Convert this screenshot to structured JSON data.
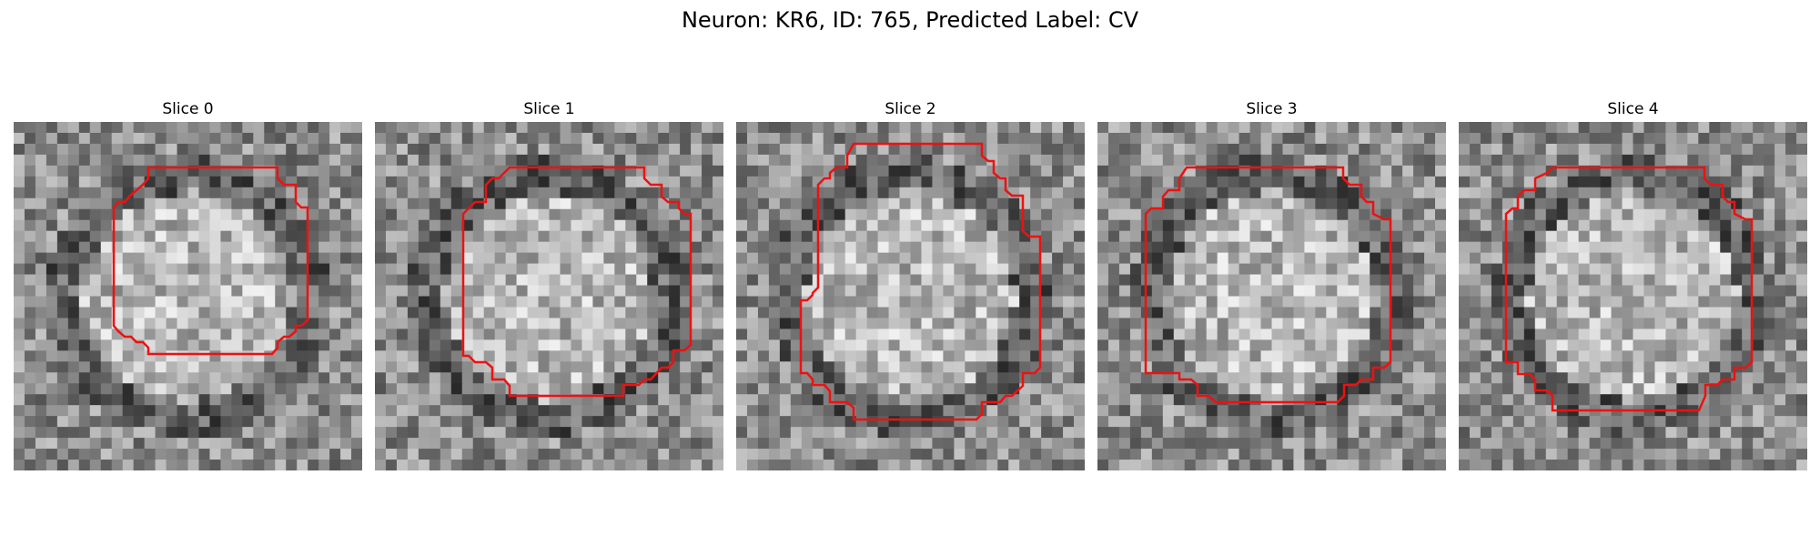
{
  "title": "Neuron: KR6, ID: 765, Predicted Label: CV",
  "colors": {
    "background": "#ffffff",
    "contour": "#ee1111",
    "colormap": "grayscale"
  },
  "image_grid": {
    "rows": 32,
    "cols": 32
  },
  "panels": [
    {
      "title": "Slice 0",
      "contour_shape": "octagon",
      "contour_size": "small",
      "visual_notes": "bright center surrounded by dark ring",
      "seed": 11
    },
    {
      "title": "Slice 1",
      "contour_shape": "octagon",
      "contour_size": "medium",
      "visual_notes": "mottled bright interior, dark ring",
      "seed": 23
    },
    {
      "title": "Slice 2",
      "contour_shape": "octagon",
      "contour_size": "large",
      "visual_notes": "large mottled interior, darker band inside lower region",
      "seed": 37
    },
    {
      "title": "Slice 3",
      "contour_shape": "octagon",
      "contour_size": "medium",
      "visual_notes": "bright interior with darker center and dark ring",
      "seed": 41
    },
    {
      "title": "Slice 4",
      "contour_shape": "octagon",
      "contour_size": "medium",
      "visual_notes": "bright upper center, dark lower band",
      "seed": 53
    }
  ]
}
